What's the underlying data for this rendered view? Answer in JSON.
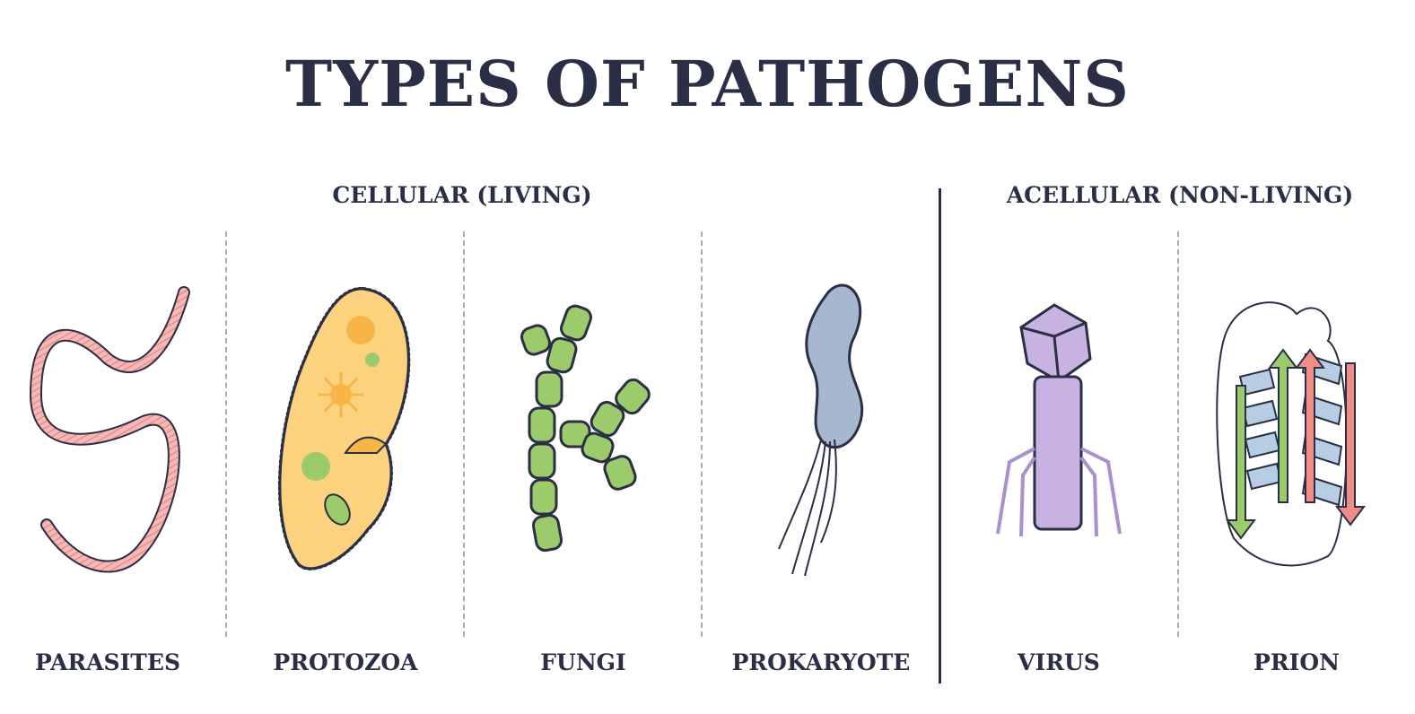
{
  "title": "TYPES OF PATHOGENS",
  "groups": {
    "cellular": "CELLULAR (LIVING)",
    "acellular": "ACELLULAR (NON-LIVING)"
  },
  "items": [
    {
      "label": "PARASITES",
      "icon": "worm-icon",
      "color": "#f4a9a8"
    },
    {
      "label": "PROTOZOA",
      "icon": "paramecium-icon",
      "color": "#fcd27e"
    },
    {
      "label": "FUNGI",
      "icon": "hyphae-icon",
      "color": "#9ccb6b"
    },
    {
      "label": "PROKARYOTE",
      "icon": "bacterium-icon",
      "color": "#a6b8cf"
    },
    {
      "label": "VIRUS",
      "icon": "bacteriophage-icon",
      "color": "#c7b2e2"
    },
    {
      "label": "PRION",
      "icon": "misfolded-protein-icon",
      "color": "#b7cde3"
    }
  ],
  "colors": {
    "outline": "#2b2f45",
    "divider": "#9fb0bb"
  }
}
